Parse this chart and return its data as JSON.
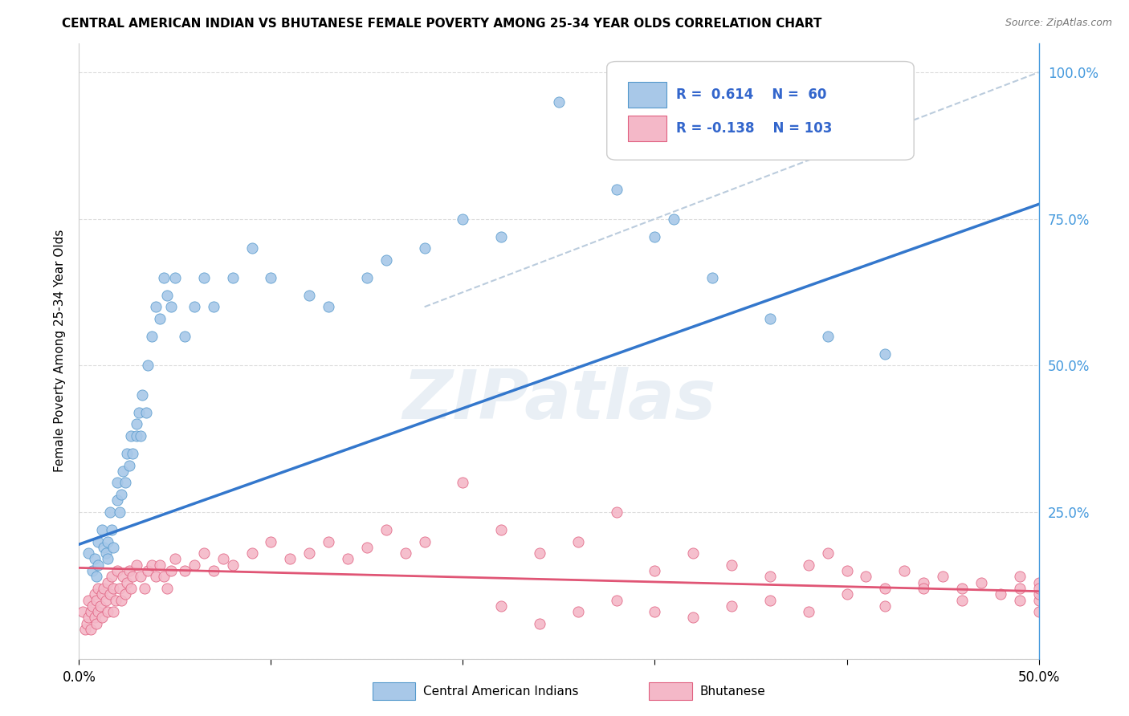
{
  "title": "CENTRAL AMERICAN INDIAN VS BHUTANESE FEMALE POVERTY AMONG 25-34 YEAR OLDS CORRELATION CHART",
  "source": "Source: ZipAtlas.com",
  "ylabel": "Female Poverty Among 25-34 Year Olds",
  "xlim": [
    0.0,
    0.5
  ],
  "ylim": [
    0.0,
    1.05
  ],
  "blue_R": "0.614",
  "blue_N": "60",
  "pink_R": "-0.138",
  "pink_N": "103",
  "blue_color": "#A8C8E8",
  "pink_color": "#F4B8C8",
  "blue_edge_color": "#5599CC",
  "pink_edge_color": "#E06080",
  "blue_line_color": "#3377CC",
  "pink_line_color": "#E05575",
  "dashed_line_color": "#BBCCDD",
  "watermark": "ZIPatlas",
  "legend_label_blue": "Central American Indians",
  "legend_label_pink": "Bhutanese",
  "blue_scatter_x": [
    0.005,
    0.007,
    0.008,
    0.009,
    0.01,
    0.01,
    0.012,
    0.013,
    0.014,
    0.015,
    0.015,
    0.016,
    0.017,
    0.018,
    0.02,
    0.02,
    0.021,
    0.022,
    0.023,
    0.024,
    0.025,
    0.026,
    0.027,
    0.028,
    0.03,
    0.03,
    0.031,
    0.032,
    0.033,
    0.035,
    0.036,
    0.038,
    0.04,
    0.042,
    0.044,
    0.046,
    0.048,
    0.05,
    0.055,
    0.06,
    0.065,
    0.07,
    0.08,
    0.09,
    0.1,
    0.12,
    0.13,
    0.15,
    0.16,
    0.18,
    0.2,
    0.22,
    0.25,
    0.28,
    0.3,
    0.31,
    0.33,
    0.36,
    0.39,
    0.42
  ],
  "blue_scatter_y": [
    0.18,
    0.15,
    0.17,
    0.14,
    0.2,
    0.16,
    0.22,
    0.19,
    0.18,
    0.2,
    0.17,
    0.25,
    0.22,
    0.19,
    0.3,
    0.27,
    0.25,
    0.28,
    0.32,
    0.3,
    0.35,
    0.33,
    0.38,
    0.35,
    0.4,
    0.38,
    0.42,
    0.38,
    0.45,
    0.42,
    0.5,
    0.55,
    0.6,
    0.58,
    0.65,
    0.62,
    0.6,
    0.65,
    0.55,
    0.6,
    0.65,
    0.6,
    0.65,
    0.7,
    0.65,
    0.62,
    0.6,
    0.65,
    0.68,
    0.7,
    0.75,
    0.72,
    0.95,
    0.8,
    0.72,
    0.75,
    0.65,
    0.58,
    0.55,
    0.52
  ],
  "pink_scatter_x": [
    0.002,
    0.003,
    0.004,
    0.005,
    0.005,
    0.006,
    0.006,
    0.007,
    0.008,
    0.008,
    0.009,
    0.009,
    0.01,
    0.01,
    0.011,
    0.012,
    0.012,
    0.013,
    0.014,
    0.015,
    0.015,
    0.016,
    0.017,
    0.018,
    0.018,
    0.019,
    0.02,
    0.021,
    0.022,
    0.023,
    0.024,
    0.025,
    0.026,
    0.027,
    0.028,
    0.03,
    0.032,
    0.034,
    0.036,
    0.038,
    0.04,
    0.042,
    0.044,
    0.046,
    0.048,
    0.05,
    0.055,
    0.06,
    0.065,
    0.07,
    0.075,
    0.08,
    0.09,
    0.1,
    0.11,
    0.12,
    0.13,
    0.14,
    0.15,
    0.16,
    0.17,
    0.18,
    0.2,
    0.22,
    0.24,
    0.26,
    0.28,
    0.3,
    0.32,
    0.34,
    0.36,
    0.38,
    0.39,
    0.4,
    0.41,
    0.42,
    0.43,
    0.44,
    0.45,
    0.46,
    0.47,
    0.48,
    0.49,
    0.49,
    0.49,
    0.5,
    0.5,
    0.5,
    0.5,
    0.5,
    0.46,
    0.44,
    0.42,
    0.4,
    0.38,
    0.36,
    0.34,
    0.32,
    0.3,
    0.28,
    0.26,
    0.24,
    0.22
  ],
  "pink_scatter_y": [
    0.08,
    0.05,
    0.06,
    0.1,
    0.07,
    0.08,
    0.05,
    0.09,
    0.11,
    0.07,
    0.1,
    0.06,
    0.12,
    0.08,
    0.09,
    0.11,
    0.07,
    0.12,
    0.1,
    0.13,
    0.08,
    0.11,
    0.14,
    0.12,
    0.08,
    0.1,
    0.15,
    0.12,
    0.1,
    0.14,
    0.11,
    0.13,
    0.15,
    0.12,
    0.14,
    0.16,
    0.14,
    0.12,
    0.15,
    0.16,
    0.14,
    0.16,
    0.14,
    0.12,
    0.15,
    0.17,
    0.15,
    0.16,
    0.18,
    0.15,
    0.17,
    0.16,
    0.18,
    0.2,
    0.17,
    0.18,
    0.2,
    0.17,
    0.19,
    0.22,
    0.18,
    0.2,
    0.3,
    0.22,
    0.18,
    0.2,
    0.25,
    0.15,
    0.18,
    0.16,
    0.14,
    0.16,
    0.18,
    0.15,
    0.14,
    0.12,
    0.15,
    0.13,
    0.14,
    0.12,
    0.13,
    0.11,
    0.14,
    0.1,
    0.12,
    0.13,
    0.1,
    0.11,
    0.08,
    0.12,
    0.1,
    0.12,
    0.09,
    0.11,
    0.08,
    0.1,
    0.09,
    0.07,
    0.08,
    0.1,
    0.08,
    0.06,
    0.09
  ],
  "blue_line_x": [
    0.0,
    0.5
  ],
  "blue_line_y": [
    0.195,
    0.775
  ],
  "pink_line_x": [
    0.0,
    0.5
  ],
  "pink_line_y": [
    0.155,
    0.115
  ],
  "dashed_line_x": [
    0.18,
    0.5
  ],
  "dashed_line_y": [
    0.6,
    1.0
  ],
  "background_color": "#FFFFFF",
  "grid_color": "#DDDDDD"
}
